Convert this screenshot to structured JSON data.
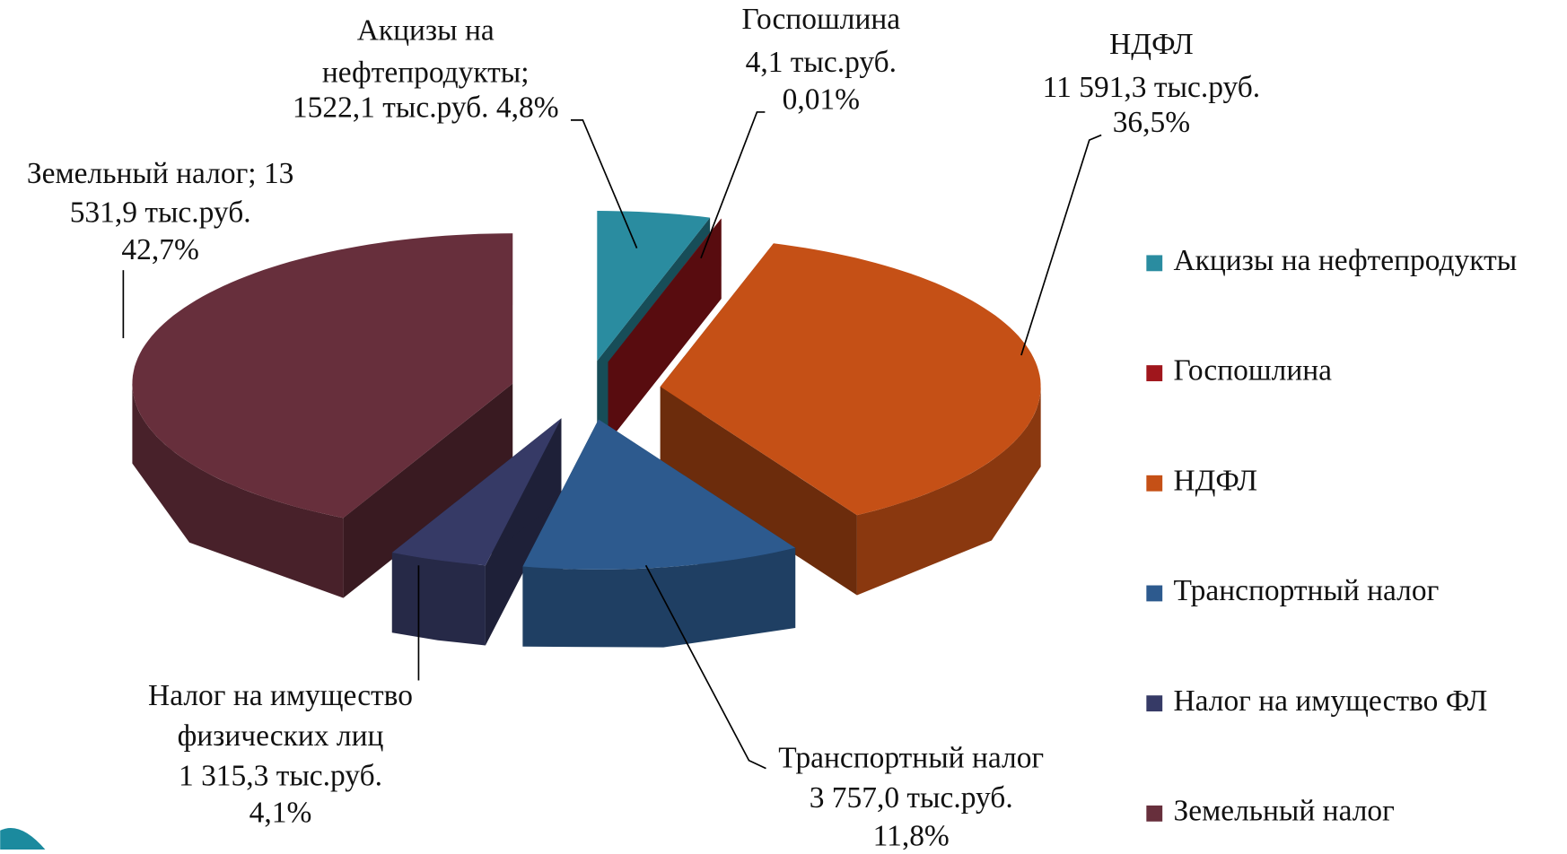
{
  "chart_data": {
    "type": "pie",
    "3d": true,
    "exploded": true,
    "categories": [
      "Акцизы на нефтепродукты",
      "Госпошлина",
      "НДФЛ",
      "Транспортный налог",
      "Налог на имущество ФЛ",
      "Земельный налог"
    ],
    "values": [
      1522.1,
      4.1,
      11591.3,
      3757.0,
      1315.3,
      13531.9
    ],
    "value_labels": [
      [
        "Акцизы на",
        "нефтепродукты;",
        "1522,1 тыс.руб. 4,8%"
      ],
      [
        "Госпошлина",
        "4,1 тыс.руб.",
        "0,01%"
      ],
      [
        "НДФЛ",
        "11 591,3 тыс.руб.",
        "36,5%"
      ],
      [
        "Транспортный налог",
        "3 757,0 тыс.руб.",
        "11,8%"
      ],
      [
        "Налог на имущество",
        "физических лиц",
        "1 315,3 тыс.руб.",
        "4,1%"
      ],
      [
        "Земельный налог; 13",
        "531,9 тыс.руб.",
        "42,7%"
      ]
    ],
    "colors": [
      "#2a8ca0",
      "#a0161c",
      "#c55016",
      "#2d5a8e",
      "#363a66",
      "#672f3c"
    ],
    "legend": "right"
  }
}
